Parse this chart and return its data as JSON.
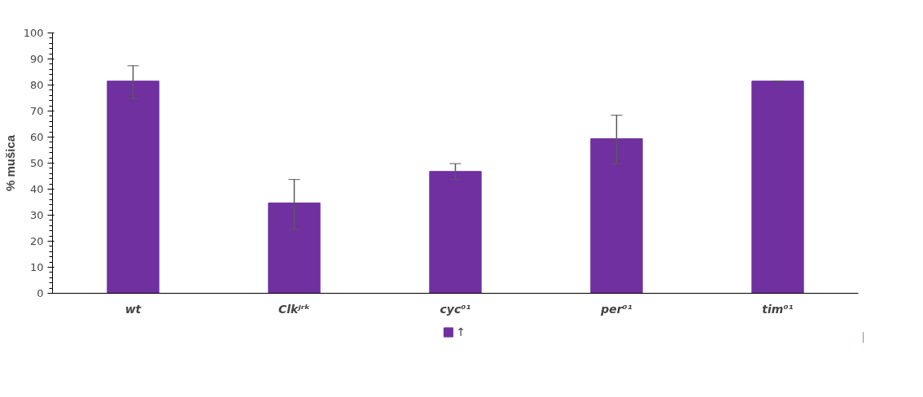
{
  "chart_data": {
    "type": "bar",
    "ylabel": "% mušica",
    "categories": [
      "wt",
      "Clkᴶʳᵏ",
      "cyc⁰¹",
      "per⁰¹",
      "tim⁰¹"
    ],
    "series": [
      {
        "name": "↑",
        "color": "#7030a0",
        "values": [
          81.5,
          34.7,
          46.8,
          59.4,
          81.5
        ],
        "errors": [
          [
            74.8,
            87.4
          ],
          [
            24.6,
            43.7
          ],
          [
            43.7,
            49.8
          ],
          [
            49.8,
            68.4
          ],
          0
        ]
      }
    ],
    "ylim": [
      0,
      100
    ],
    "yticks": [
      0,
      10,
      20,
      30,
      40,
      50,
      60,
      70,
      80,
      90,
      100
    ],
    "grid": false,
    "legend": "bottom"
  }
}
